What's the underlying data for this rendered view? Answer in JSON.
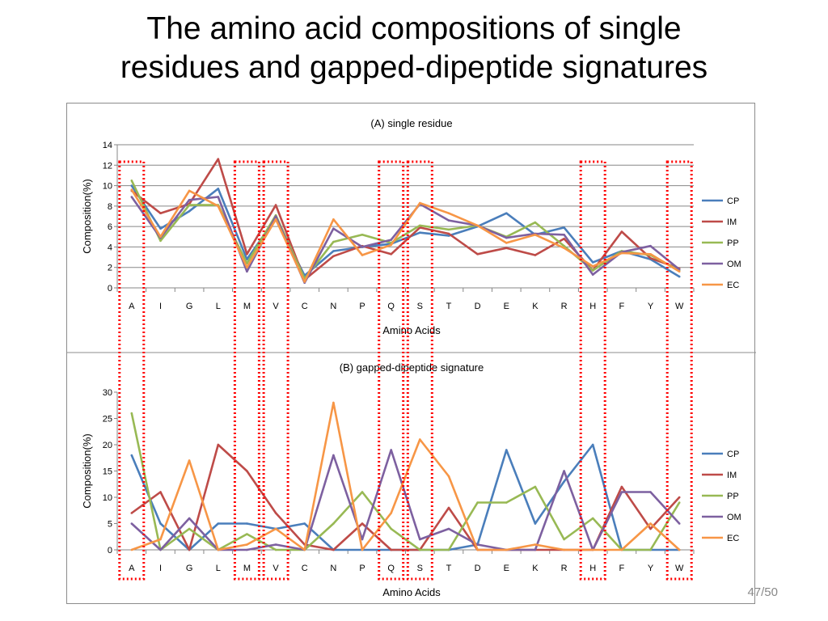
{
  "slide": {
    "title_line1": "The amino acid compositions of single",
    "title_line2": "residues and gapped-dipeptide signatures",
    "page_number": "47/50"
  },
  "highlight_color": "#ff0000",
  "highlighted_categories": [
    "A",
    "M",
    "V",
    "Q",
    "S",
    "H",
    "W"
  ],
  "chart_data": [
    {
      "type": "line",
      "title": "(A) single residue",
      "xlabel": "Amino Acids",
      "ylabel": "Composition(%)",
      "ylim": [
        0,
        14
      ],
      "yticks": [
        0,
        2,
        4,
        6,
        8,
        10,
        12,
        14
      ],
      "grid": true,
      "legend": "right",
      "categories": [
        "A",
        "I",
        "G",
        "L",
        "M",
        "V",
        "C",
        "N",
        "P",
        "Q",
        "S",
        "T",
        "D",
        "E",
        "K",
        "R",
        "H",
        "F",
        "Y",
        "W"
      ],
      "series": [
        {
          "name": "CP",
          "color": "#4a7ebb",
          "values": [
            10.0,
            5.8,
            7.5,
            9.7,
            2.8,
            6.8,
            1.2,
            3.6,
            4.0,
            4.3,
            5.4,
            5.1,
            6.0,
            7.3,
            5.2,
            5.9,
            2.5,
            3.6,
            2.8,
            1.1
          ]
        },
        {
          "name": "IM",
          "color": "#be4b48",
          "values": [
            9.5,
            7.3,
            8.2,
            12.6,
            3.3,
            8.1,
            0.8,
            3.1,
            4.1,
            3.3,
            5.9,
            5.3,
            3.3,
            3.9,
            3.2,
            4.8,
            1.7,
            5.5,
            2.9,
            1.9
          ]
        },
        {
          "name": "PP",
          "color": "#98b954",
          "values": [
            10.5,
            4.6,
            8.1,
            8.1,
            2.4,
            7.1,
            0.9,
            4.5,
            5.2,
            4.4,
            6.1,
            5.7,
            6.1,
            5.0,
            6.4,
            4.1,
            1.7,
            3.6,
            3.2,
            1.7
          ]
        },
        {
          "name": "OM",
          "color": "#7d60a0",
          "values": [
            8.9,
            4.9,
            8.6,
            8.9,
            1.6,
            7.0,
            0.5,
            5.8,
            4.0,
            4.7,
            8.2,
            6.6,
            6.1,
            4.9,
            5.3,
            5.2,
            1.3,
            3.5,
            4.1,
            1.8
          ]
        },
        {
          "name": "EC",
          "color": "#f79646",
          "values": [
            9.6,
            5.0,
            9.5,
            8.0,
            2.0,
            6.7,
            0.6,
            6.7,
            3.2,
            4.2,
            8.3,
            7.3,
            6.1,
            4.4,
            5.2,
            3.9,
            2.1,
            3.4,
            3.3,
            1.6
          ]
        }
      ]
    },
    {
      "type": "line",
      "title": "(B) gapped-dipeptide signature",
      "xlabel": "Amino Acids",
      "ylabel": "Composition(%)",
      "ylim": [
        0,
        30
      ],
      "yticks": [
        0,
        5,
        10,
        15,
        20,
        25,
        30
      ],
      "grid": false,
      "legend": "right",
      "categories": [
        "A",
        "I",
        "G",
        "L",
        "M",
        "V",
        "C",
        "N",
        "P",
        "Q",
        "S",
        "T",
        "D",
        "E",
        "K",
        "R",
        "H",
        "F",
        "Y",
        "W"
      ],
      "series": [
        {
          "name": "CP",
          "color": "#4a7ebb",
          "values": [
            18,
            5,
            0,
            5,
            5,
            4,
            5,
            0,
            0,
            0,
            0,
            0,
            1,
            19,
            5,
            13,
            20,
            0,
            0,
            0
          ]
        },
        {
          "name": "IM",
          "color": "#be4b48",
          "values": [
            7,
            11,
            0,
            20,
            15,
            7,
            1,
            0,
            5,
            0,
            0,
            8,
            0,
            0,
            0,
            0,
            0,
            12,
            4,
            10
          ]
        },
        {
          "name": "PP",
          "color": "#98b954",
          "values": [
            26,
            0,
            4,
            0,
            3,
            0,
            0,
            5,
            11,
            4,
            0,
            0,
            9,
            9,
            12,
            2,
            6,
            0,
            0,
            9
          ]
        },
        {
          "name": "OM",
          "color": "#7d60a0",
          "values": [
            5,
            0,
            6,
            0,
            0,
            1,
            0,
            18,
            2,
            19,
            2,
            4,
            1,
            0,
            0,
            15,
            0,
            11,
            11,
            5
          ]
        },
        {
          "name": "EC",
          "color": "#f79646",
          "values": [
            0,
            2,
            17,
            0,
            1,
            4,
            0,
            28,
            0,
            7,
            21,
            14,
            0,
            0,
            1,
            0,
            0,
            0,
            5,
            0
          ]
        }
      ]
    }
  ]
}
